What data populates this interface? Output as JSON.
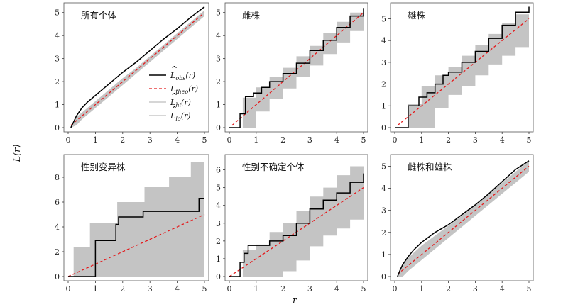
{
  "figure": {
    "ylabel": "L(r)",
    "xlabel": "r",
    "legend": {
      "placement": "panel 1, lower-right",
      "entries": [
        {
          "hat": true,
          "base": "L",
          "sub": "obs",
          "arg": "(r)",
          "color": "#000000",
          "style": "solid"
        },
        {
          "hat": false,
          "base": "L",
          "sub": "theo",
          "arg": "(r)",
          "color": "#e41a1c",
          "style": "dashed"
        },
        {
          "hat": true,
          "base": "L",
          "sub": "hi",
          "arg": "(r)",
          "color": "#c8c8c8",
          "style": "solid"
        },
        {
          "hat": true,
          "base": "L",
          "sub": "lo",
          "arg": "(r)",
          "color": "#c8c8c8",
          "style": "solid"
        }
      ]
    },
    "colors": {
      "envelope": "#c4c4c4",
      "observed": "#000000",
      "theoretical": "#e41a1c"
    }
  },
  "chart_data": [
    {
      "type": "line",
      "title": "所有个体",
      "xlim": [
        0,
        5
      ],
      "ylim": [
        0,
        5.3
      ],
      "xticks": [
        0,
        1,
        2,
        3,
        4,
        5
      ],
      "yticks": [
        0,
        1,
        2,
        3,
        4,
        5
      ],
      "step": false,
      "series": [
        {
          "name": "L_obs(r)",
          "x": [
            0.1,
            0.2,
            0.3,
            0.5,
            0.7,
            1.0,
            1.5,
            2.0,
            2.5,
            3.0,
            3.5,
            4.0,
            4.5,
            5.0
          ],
          "y": [
            0.0,
            0.25,
            0.5,
            0.85,
            1.1,
            1.4,
            1.9,
            2.4,
            2.85,
            3.35,
            3.85,
            4.3,
            4.8,
            5.25
          ]
        },
        {
          "name": "L_theo(r)",
          "x": [
            0.1,
            5.0
          ],
          "y": [
            0.1,
            5.0
          ]
        },
        {
          "name": "L_hi(r)",
          "x": [
            0.1,
            0.3,
            0.5,
            1.0,
            1.5,
            2.0,
            2.5,
            3.0,
            3.5,
            4.0,
            4.5,
            5.0
          ],
          "y": [
            0.0,
            0.45,
            0.65,
            1.15,
            1.65,
            2.15,
            2.6,
            3.1,
            3.6,
            4.1,
            4.6,
            5.1
          ]
        },
        {
          "name": "L_lo(r)",
          "x": [
            0.1,
            0.3,
            0.5,
            1.0,
            1.5,
            2.0,
            2.5,
            3.0,
            3.5,
            4.0,
            4.5,
            5.0
          ],
          "y": [
            0.0,
            0.1,
            0.35,
            0.85,
            1.35,
            1.85,
            2.35,
            2.85,
            3.35,
            3.85,
            4.35,
            4.85
          ]
        }
      ]
    },
    {
      "type": "line",
      "title": "雌株",
      "xlim": [
        0,
        5
      ],
      "ylim": [
        0,
        5.3
      ],
      "xticks": [
        0,
        1,
        2,
        3,
        4,
        5
      ],
      "yticks": [
        0,
        1,
        2,
        3,
        4,
        5
      ],
      "step": true,
      "series": [
        {
          "name": "L_obs(r)",
          "x": [
            0.0,
            0.3,
            0.4,
            0.6,
            0.9,
            1.2,
            1.5,
            2.0,
            2.5,
            3.0,
            3.5,
            4.0,
            4.5,
            5.0
          ],
          "y": [
            0.0,
            0.0,
            0.6,
            1.35,
            1.5,
            1.75,
            2.0,
            2.35,
            2.8,
            3.35,
            3.8,
            4.35,
            4.85,
            5.2
          ]
        },
        {
          "name": "L_theo(r)",
          "x": [
            0.1,
            5.0
          ],
          "y": [
            0.1,
            5.0
          ]
        },
        {
          "name": "L_hi(r)",
          "x": [
            0.0,
            0.5,
            1.0,
            1.5,
            2.0,
            2.5,
            3.0,
            3.5,
            4.0,
            4.5,
            5.0
          ],
          "y": [
            0.0,
            1.3,
            1.75,
            2.2,
            2.6,
            3.1,
            3.55,
            4.1,
            4.6,
            5.0,
            5.3
          ]
        },
        {
          "name": "L_lo(r)",
          "x": [
            0.0,
            0.5,
            1.0,
            1.5,
            2.0,
            2.5,
            3.0,
            3.5,
            4.0,
            4.5,
            5.0
          ],
          "y": [
            0.0,
            0.0,
            0.7,
            1.25,
            1.7,
            2.2,
            2.7,
            3.2,
            3.7,
            4.2,
            4.7
          ]
        }
      ]
    },
    {
      "type": "line",
      "title": "雄株",
      "xlim": [
        0,
        5
      ],
      "ylim": [
        0,
        5.6
      ],
      "xticks": [
        0,
        1,
        2,
        3,
        4,
        5
      ],
      "yticks": [
        0,
        1,
        2,
        3,
        4,
        5
      ],
      "step": true,
      "series": [
        {
          "name": "L_obs(r)",
          "x": [
            0.0,
            0.45,
            0.5,
            0.9,
            1.2,
            1.5,
            1.8,
            2.0,
            2.5,
            3.0,
            3.5,
            4.0,
            4.5,
            5.0
          ],
          "y": [
            0.0,
            0.0,
            1.0,
            1.4,
            1.6,
            2.0,
            2.4,
            2.55,
            3.0,
            3.5,
            4.1,
            4.7,
            5.3,
            5.55
          ]
        },
        {
          "name": "L_theo(r)",
          "x": [
            0.1,
            5.0
          ],
          "y": [
            0.1,
            5.0
          ]
        },
        {
          "name": "L_hi(r)",
          "x": [
            0.0,
            0.5,
            1.0,
            1.5,
            2.0,
            2.5,
            3.0,
            3.5,
            4.0,
            4.5,
            5.0
          ],
          "y": [
            0.0,
            1.1,
            1.9,
            2.4,
            2.8,
            3.3,
            3.8,
            4.3,
            4.8,
            5.2,
            5.55
          ]
        },
        {
          "name": "L_lo(r)",
          "x": [
            0.0,
            0.5,
            1.0,
            1.5,
            2.0,
            2.5,
            3.0,
            3.5,
            4.0,
            4.5,
            5.0
          ],
          "y": [
            0.0,
            0.0,
            0.0,
            0.9,
            1.5,
            1.9,
            2.4,
            2.9,
            3.3,
            3.7,
            4.3
          ]
        }
      ]
    },
    {
      "type": "line",
      "title": "性别变异株",
      "xlim": [
        0,
        5
      ],
      "ylim": [
        0,
        9.6
      ],
      "xticks": [
        0,
        1,
        2,
        3,
        4,
        5
      ],
      "yticks": [
        0,
        2,
        4,
        6,
        8
      ],
      "step": true,
      "series": [
        {
          "name": "L_obs(r)",
          "x": [
            0.0,
            1.0,
            1.0,
            1.75,
            1.75,
            1.85,
            1.85,
            2.75,
            2.75,
            4.8,
            4.8,
            5.0
          ],
          "y": [
            0.0,
            0.0,
            2.9,
            2.9,
            4.2,
            4.2,
            4.8,
            4.8,
            5.25,
            5.25,
            6.3,
            6.3
          ]
        },
        {
          "name": "L_theo(r)",
          "x": [
            0.0,
            5.0
          ],
          "y": [
            0.0,
            5.0
          ]
        },
        {
          "name": "L_hi(r)",
          "x": [
            0.0,
            0.2,
            0.8,
            1.8,
            2.8,
            3.7,
            4.5,
            5.0
          ],
          "y": [
            0.0,
            2.4,
            4.3,
            6.0,
            7.2,
            8.0,
            9.2,
            9.2
          ]
        },
        {
          "name": "L_lo(r)",
          "x": [
            0.0,
            1.0,
            2.0,
            3.0,
            4.0,
            5.0
          ],
          "y": [
            0.0,
            0.0,
            0.0,
            0.0,
            0.0,
            0.0
          ]
        }
      ]
    },
    {
      "type": "line",
      "title": "性别不确定个体",
      "xlim": [
        0,
        5
      ],
      "ylim": [
        0,
        6.7
      ],
      "xticks": [
        0,
        1,
        2,
        3,
        4,
        5
      ],
      "yticks": [
        0,
        1,
        2,
        3,
        4,
        5,
        6
      ],
      "step": true,
      "series": [
        {
          "name": "L_obs(r)",
          "x": [
            0.0,
            0.3,
            0.4,
            0.55,
            0.7,
            0.85,
            1.2,
            1.5,
            2.0,
            2.5,
            3.0,
            3.5,
            4.0,
            4.5,
            5.0
          ],
          "y": [
            0.0,
            0.0,
            0.8,
            1.3,
            1.75,
            1.75,
            1.75,
            2.0,
            2.3,
            3.0,
            3.8,
            4.3,
            4.7,
            5.3,
            5.8
          ]
        },
        {
          "name": "L_theo(r)",
          "x": [
            0.0,
            5.0
          ],
          "y": [
            0.0,
            5.0
          ]
        },
        {
          "name": "L_hi(r)",
          "x": [
            0.0,
            0.5,
            1.0,
            1.5,
            2.0,
            2.5,
            3.0,
            3.5,
            4.0,
            4.5,
            5.0
          ],
          "y": [
            0.0,
            1.5,
            1.8,
            2.5,
            3.0,
            3.7,
            4.5,
            5.0,
            5.7,
            6.2,
            6.6
          ]
        },
        {
          "name": "L_lo(r)",
          "x": [
            0.0,
            1.0,
            2.0,
            2.5,
            3.0,
            3.5,
            4.0,
            4.5,
            5.0
          ],
          "y": [
            0.0,
            0.0,
            0.3,
            0.9,
            1.7,
            2.3,
            2.7,
            3.2,
            3.4
          ]
        }
      ]
    },
    {
      "type": "line",
      "title": "雌株和雄株",
      "xlim": [
        0,
        5
      ],
      "ylim": [
        0,
        5.4
      ],
      "xticks": [
        0,
        1,
        2,
        3,
        4,
        5
      ],
      "yticks": [
        0,
        1,
        2,
        3,
        4,
        5
      ],
      "step": false,
      "series": [
        {
          "name": "L_obs(r)",
          "x": [
            0.1,
            0.2,
            0.3,
            0.5,
            0.7,
            1.0,
            1.5,
            2.0,
            2.5,
            3.0,
            3.5,
            4.0,
            4.5,
            5.0
          ],
          "y": [
            0.0,
            0.3,
            0.55,
            0.9,
            1.2,
            1.55,
            2.0,
            2.35,
            2.8,
            3.25,
            3.75,
            4.3,
            4.85,
            5.25
          ]
        },
        {
          "name": "L_theo(r)",
          "x": [
            0.1,
            5.0
          ],
          "y": [
            0.1,
            5.0
          ]
        },
        {
          "name": "L_hi(r)",
          "x": [
            0.1,
            0.3,
            0.5,
            1.0,
            1.5,
            2.0,
            2.5,
            3.0,
            3.5,
            4.0,
            4.5,
            5.0
          ],
          "y": [
            0.0,
            0.6,
            0.85,
            1.4,
            1.85,
            2.3,
            2.75,
            3.25,
            3.75,
            4.25,
            4.75,
            5.25
          ]
        },
        {
          "name": "L_lo(r)",
          "x": [
            0.1,
            0.3,
            0.5,
            1.0,
            1.5,
            2.0,
            2.5,
            3.0,
            3.5,
            4.0,
            4.5,
            5.0
          ],
          "y": [
            0.0,
            0.0,
            0.25,
            0.75,
            1.25,
            1.75,
            2.25,
            2.75,
            3.25,
            3.75,
            4.25,
            4.75
          ]
        }
      ]
    }
  ]
}
